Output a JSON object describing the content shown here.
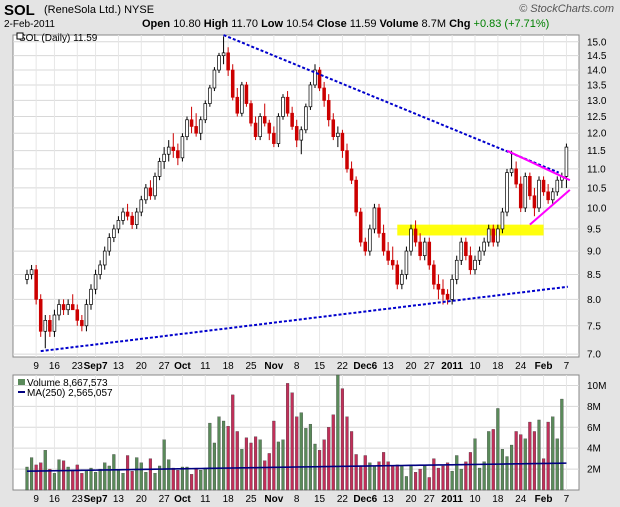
{
  "header": {
    "symbol": "SOL",
    "company": "(ReneSola Ltd.)  NYSE",
    "date": "2-Feb-2011",
    "open_label": "Open",
    "open": "10.80",
    "high_label": "High",
    "high": "11.70",
    "low_label": "Low",
    "low": "10.54",
    "close_label": "Close",
    "close": "11.59",
    "volume_label": "Volume",
    "volume": "8.7M",
    "chg_label": "Chg",
    "chg": "+0.83 (+7.71%)",
    "copyright": "© StockCharts.com"
  },
  "price_legend": "SOL (Daily) 11.59",
  "volume_legend": "Volume 8,667,573",
  "ma_legend": "MA(250) 2,565,057",
  "colors": {
    "up": "#ffffff",
    "down": "#cc0000",
    "candle_edge": "#000000",
    "trendline": "#0000cc",
    "pennant": "#ff00ff",
    "zone": "#ffff00",
    "vol_up": "#5a8a5a",
    "vol_down": "#c0305a",
    "ma": "#000080"
  },
  "chart_data": {
    "type": "candlestick",
    "x_tick_labels": [
      "9",
      "16",
      "23",
      "Sep7",
      "13",
      "20",
      "27",
      "Oct",
      "11",
      "18",
      "25",
      "Nov",
      "8",
      "15",
      "22",
      "Dec6",
      "13",
      "20",
      "27",
      "2011",
      "10",
      "18",
      "24",
      "Feb",
      "7"
    ],
    "y_ticks": [
      7.0,
      7.5,
      8.0,
      8.5,
      9.0,
      9.5,
      10.0,
      10.5,
      11.0,
      11.5,
      12.0,
      12.5,
      13.0,
      13.5,
      14.0,
      14.5,
      15.0
    ],
    "ylim": [
      6.95,
      15.25
    ],
    "scale": "log",
    "volume_y_ticks": [
      "2M",
      "4M",
      "6M",
      "8M",
      "10M"
    ],
    "volume_ylim": [
      0,
      11
    ],
    "candles": [
      [
        8.4,
        8.6,
        8.3,
        8.5
      ],
      [
        8.5,
        8.7,
        8.4,
        8.6
      ],
      [
        8.6,
        8.7,
        7.9,
        8.0
      ],
      [
        8.0,
        8.1,
        7.3,
        7.4
      ],
      [
        7.4,
        7.7,
        7.1,
        7.6
      ],
      [
        7.6,
        7.7,
        7.3,
        7.4
      ],
      [
        7.4,
        7.8,
        7.3,
        7.7
      ],
      [
        7.7,
        8.0,
        7.6,
        7.9
      ],
      [
        7.9,
        8.0,
        7.7,
        7.8
      ],
      [
        7.8,
        8.0,
        7.7,
        7.9
      ],
      [
        7.9,
        8.1,
        7.8,
        7.8
      ],
      [
        7.8,
        7.9,
        7.5,
        7.6
      ],
      [
        7.6,
        7.7,
        7.4,
        7.5
      ],
      [
        7.5,
        8.0,
        7.4,
        7.9
      ],
      [
        7.9,
        8.3,
        7.8,
        8.2
      ],
      [
        8.2,
        8.6,
        8.1,
        8.5
      ],
      [
        8.5,
        8.8,
        8.4,
        8.7
      ],
      [
        8.7,
        9.1,
        8.6,
        9.0
      ],
      [
        9.0,
        9.4,
        8.9,
        9.3
      ],
      [
        9.3,
        9.6,
        9.2,
        9.5
      ],
      [
        9.5,
        9.8,
        9.4,
        9.7
      ],
      [
        9.7,
        10.0,
        9.6,
        9.9
      ],
      [
        9.9,
        10.1,
        9.7,
        9.8
      ],
      [
        9.8,
        9.9,
        9.5,
        9.6
      ],
      [
        9.6,
        10.0,
        9.5,
        9.9
      ],
      [
        9.9,
        10.3,
        9.8,
        10.2
      ],
      [
        10.2,
        10.6,
        10.1,
        10.5
      ],
      [
        10.5,
        10.7,
        10.2,
        10.3
      ],
      [
        10.3,
        10.9,
        10.2,
        10.8
      ],
      [
        10.8,
        11.3,
        10.7,
        11.2
      ],
      [
        11.2,
        11.6,
        11.0,
        11.4
      ],
      [
        11.4,
        11.8,
        11.2,
        11.6
      ],
      [
        11.6,
        12.0,
        11.3,
        11.5
      ],
      [
        11.5,
        11.7,
        11.1,
        11.3
      ],
      [
        11.3,
        12.0,
        11.2,
        11.9
      ],
      [
        11.9,
        12.5,
        11.8,
        12.4
      ],
      [
        12.4,
        12.8,
        12.0,
        12.2
      ],
      [
        12.2,
        12.6,
        11.9,
        12.0
      ],
      [
        12.0,
        12.5,
        11.8,
        12.4
      ],
      [
        12.4,
        13.0,
        12.3,
        12.9
      ],
      [
        12.9,
        13.5,
        12.8,
        13.4
      ],
      [
        13.4,
        14.1,
        13.3,
        14.0
      ],
      [
        14.0,
        14.6,
        13.9,
        14.5
      ],
      [
        14.5,
        15.2,
        14.2,
        14.6
      ],
      [
        14.6,
        14.8,
        13.8,
        14.0
      ],
      [
        14.0,
        14.2,
        13.0,
        13.1
      ],
      [
        13.1,
        13.4,
        12.5,
        12.6
      ],
      [
        12.6,
        13.6,
        12.5,
        13.5
      ],
      [
        13.5,
        13.6,
        12.8,
        12.9
      ],
      [
        12.9,
        13.0,
        12.2,
        12.3
      ],
      [
        12.3,
        12.5,
        11.8,
        11.9
      ],
      [
        11.9,
        12.6,
        11.8,
        12.5
      ],
      [
        12.5,
        12.9,
        12.2,
        12.3
      ],
      [
        12.3,
        12.4,
        11.8,
        12.0
      ],
      [
        12.0,
        12.2,
        11.6,
        11.7
      ],
      [
        11.7,
        12.6,
        11.6,
        12.5
      ],
      [
        12.5,
        13.2,
        12.4,
        13.1
      ],
      [
        13.1,
        13.3,
        12.5,
        12.6
      ],
      [
        12.6,
        12.8,
        12.1,
        12.2
      ],
      [
        12.2,
        12.4,
        11.6,
        11.8
      ],
      [
        11.8,
        12.2,
        11.4,
        12.1
      ],
      [
        12.1,
        12.9,
        12.0,
        12.8
      ],
      [
        12.8,
        13.6,
        12.7,
        13.5
      ],
      [
        13.5,
        14.2,
        13.4,
        14.0
      ],
      [
        14.0,
        14.1,
        13.3,
        13.4
      ],
      [
        13.4,
        13.6,
        12.8,
        13.0
      ],
      [
        13.0,
        13.2,
        12.2,
        12.4
      ],
      [
        12.4,
        12.6,
        11.8,
        11.9
      ],
      [
        11.9,
        12.2,
        11.6,
        12.0
      ],
      [
        12.0,
        12.1,
        11.3,
        11.5
      ],
      [
        11.5,
        11.7,
        10.9,
        11.0
      ],
      [
        11.0,
        11.2,
        10.6,
        10.7
      ],
      [
        10.7,
        10.8,
        9.8,
        9.9
      ],
      [
        9.9,
        10.0,
        9.1,
        9.2
      ],
      [
        9.2,
        9.3,
        8.9,
        9.0
      ],
      [
        9.0,
        9.6,
        8.9,
        9.5
      ],
      [
        9.5,
        10.1,
        9.4,
        10.0
      ],
      [
        10.0,
        10.1,
        9.3,
        9.4
      ],
      [
        9.4,
        9.6,
        8.9,
        9.0
      ],
      [
        9.0,
        9.2,
        8.7,
        8.8
      ],
      [
        8.8,
        9.1,
        8.6,
        8.7
      ],
      [
        8.7,
        8.8,
        8.2,
        8.3
      ],
      [
        8.3,
        8.6,
        8.2,
        8.5
      ],
      [
        8.5,
        9.1,
        8.4,
        9.0
      ],
      [
        9.0,
        9.6,
        8.9,
        9.5
      ],
      [
        9.5,
        9.7,
        9.1,
        9.2
      ],
      [
        9.2,
        9.4,
        8.8,
        8.9
      ],
      [
        8.9,
        9.3,
        8.8,
        9.2
      ],
      [
        9.2,
        9.3,
        8.6,
        8.7
      ],
      [
        8.7,
        8.8,
        8.2,
        8.3
      ],
      [
        8.3,
        8.5,
        8.0,
        8.2
      ],
      [
        8.2,
        8.4,
        7.9,
        8.1
      ],
      [
        8.1,
        8.2,
        7.9,
        8.0
      ],
      [
        8.0,
        8.5,
        7.9,
        8.4
      ],
      [
        8.4,
        8.9,
        8.3,
        8.8
      ],
      [
        8.8,
        9.3,
        8.7,
        9.2
      ],
      [
        9.2,
        9.3,
        8.8,
        8.9
      ],
      [
        8.9,
        9.1,
        8.5,
        8.6
      ],
      [
        8.6,
        8.9,
        8.5,
        8.8
      ],
      [
        8.8,
        9.1,
        8.7,
        9.0
      ],
      [
        9.0,
        9.3,
        8.9,
        9.2
      ],
      [
        9.2,
        9.6,
        9.1,
        9.5
      ],
      [
        9.5,
        9.6,
        9.1,
        9.2
      ],
      [
        9.2,
        9.6,
        9.1,
        9.5
      ],
      [
        9.5,
        10.0,
        9.4,
        9.9
      ],
      [
        9.9,
        11.0,
        9.8,
        10.9
      ],
      [
        10.9,
        11.5,
        10.8,
        11.0
      ],
      [
        11.0,
        11.2,
        10.5,
        10.6
      ],
      [
        10.6,
        10.8,
        9.9,
        10.0
      ],
      [
        10.0,
        10.9,
        9.9,
        10.8
      ],
      [
        10.8,
        10.9,
        10.2,
        10.3
      ],
      [
        10.3,
        10.5,
        9.8,
        10.0
      ],
      [
        10.0,
        10.8,
        9.9,
        10.7
      ],
      [
        10.7,
        10.8,
        10.3,
        10.4
      ],
      [
        10.4,
        10.6,
        10.1,
        10.2
      ],
      [
        10.2,
        10.5,
        10.1,
        10.4
      ],
      [
        10.4,
        10.8,
        10.3,
        10.7
      ],
      [
        10.7,
        10.9,
        10.5,
        10.8
      ],
      [
        10.8,
        11.7,
        10.5,
        11.6
      ]
    ],
    "volume_millions": [
      2.2,
      3.1,
      2.4,
      2.6,
      3.8,
      2.0,
      1.6,
      2.9,
      2.8,
      2.2,
      1.8,
      2.4,
      1.6,
      1.9,
      2.1,
      1.7,
      2.0,
      2.6,
      2.3,
      3.4,
      2.0,
      1.6,
      3.3,
      1.8,
      3.1,
      2.6,
      1.7,
      3.0,
      1.6,
      2.3,
      4.8,
      2.9,
      2.1,
      1.9,
      2.2,
      2.2,
      1.5,
      2.0,
      1.9,
      2.1,
      6.4,
      4.5,
      7.0,
      6.6,
      6.1,
      9.1,
      5.6,
      3.9,
      5.0,
      4.5,
      5.1,
      4.8,
      2.8,
      3.5,
      6.6,
      4.6,
      4.8,
      10.2,
      9.3,
      7.0,
      7.4,
      5.9,
      6.3,
      4.4,
      3.8,
      4.8,
      6.0,
      7.2,
      11.0,
      9.7,
      7.0,
      5.6,
      3.4,
      2.3,
      3.3,
      2.6,
      2.3,
      2.7,
      3.6,
      2.7,
      2.3,
      2.4,
      2.3,
      1.3,
      2.3,
      1.7,
      2.0,
      2.3,
      1.2,
      3.0,
      2.1,
      2.3,
      2.6,
      1.8,
      3.3,
      2.0,
      2.7,
      3.6,
      4.9,
      2.1,
      2.7,
      5.6,
      5.8,
      7.8,
      3.9,
      3.2,
      4.3,
      5.6,
      5.3,
      4.9,
      6.5,
      5.6,
      6.7,
      3.0,
      6.5,
      7.0,
      4.9,
      8.7
    ],
    "ma250_millions": [
      1.8,
      2.2,
      2.57
    ],
    "trendlines": [
      {
        "from_bar": 3,
        "from_price": 7.05,
        "to_bar": 117,
        "to_price": 8.25
      },
      {
        "from_bar": 43,
        "from_price": 15.25,
        "to_bar": 115,
        "to_price": 10.9
      }
    ],
    "pennant": {
      "top": [
        [
          105,
          11.5
        ],
        [
          117,
          10.7
        ]
      ],
      "bottom": [
        [
          110,
          9.6
        ],
        [
          117,
          10.45
        ]
      ]
    },
    "support_zone": {
      "from_bar": 81,
      "to_bar": 113,
      "low": 9.35,
      "high": 9.6
    }
  }
}
